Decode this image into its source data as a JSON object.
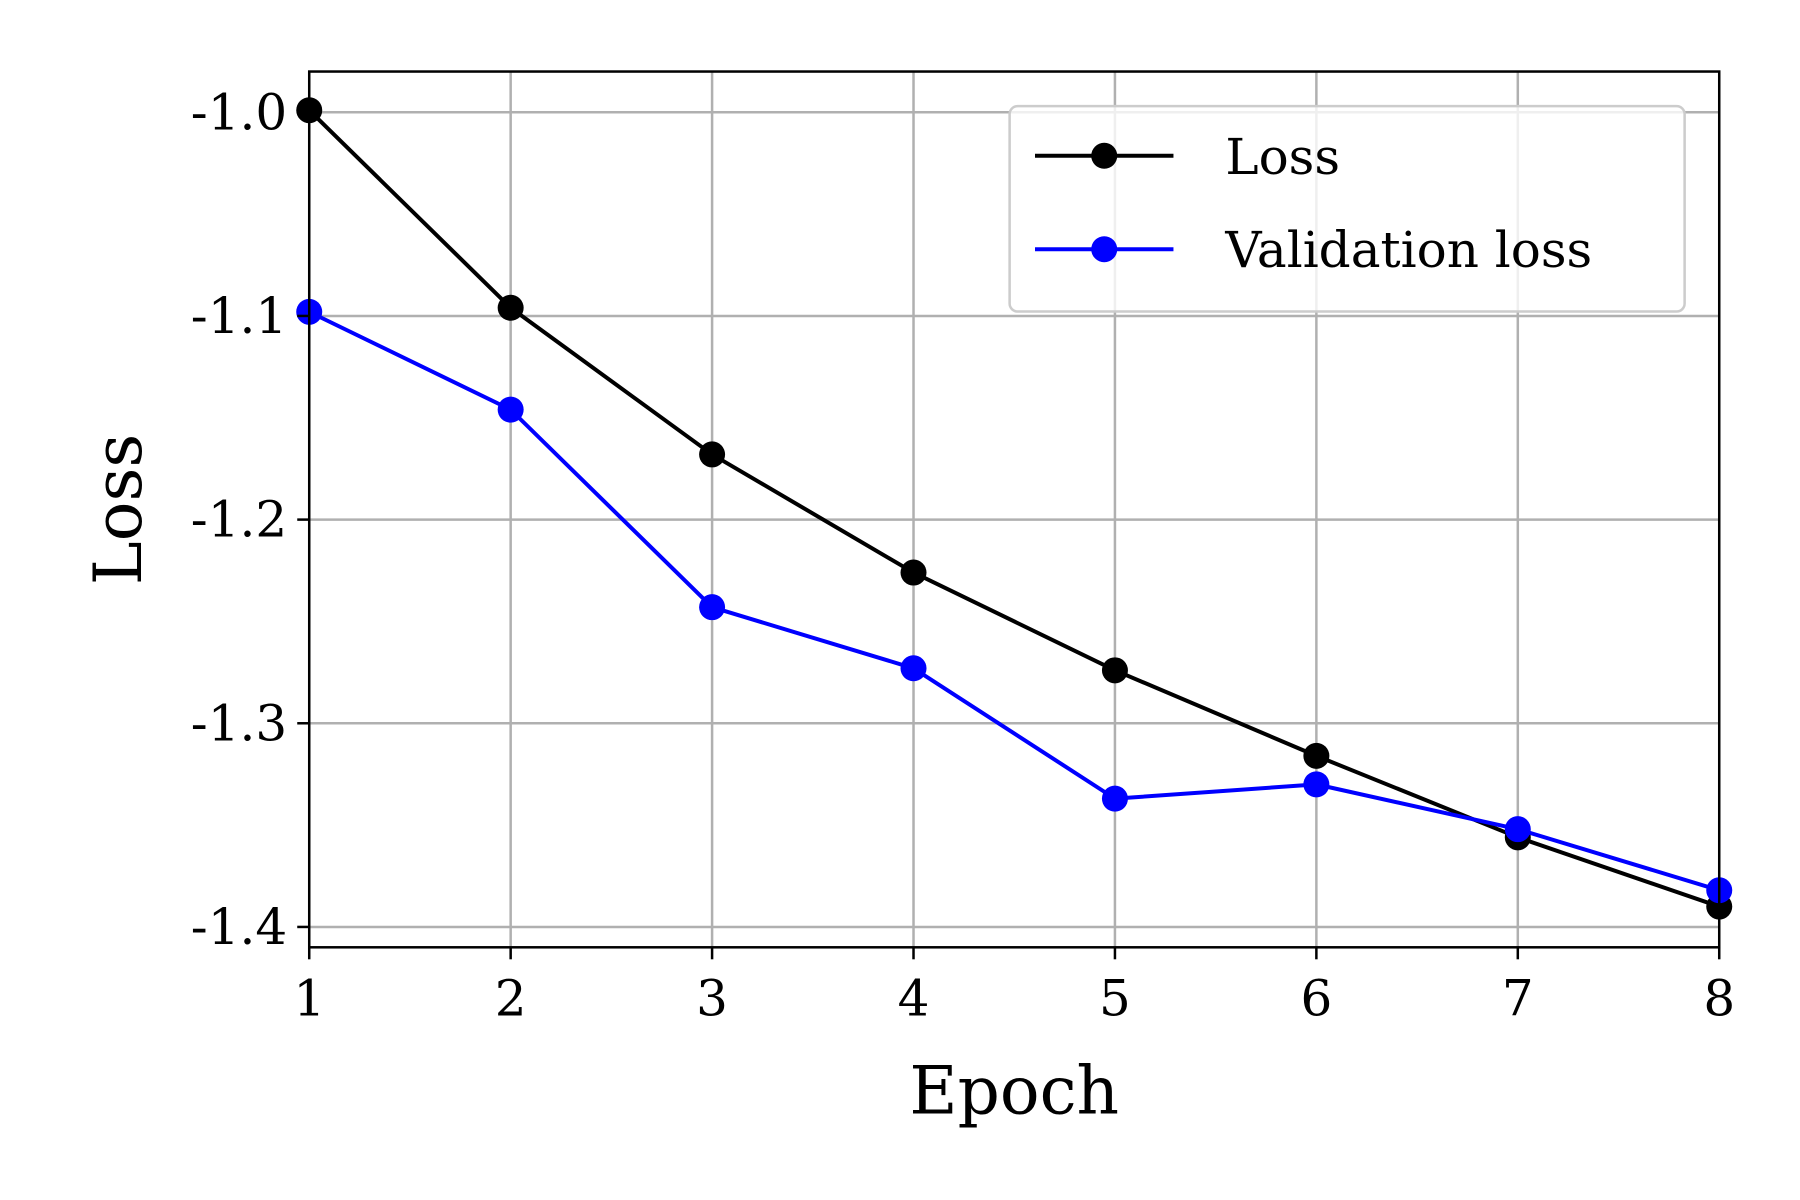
{
  "chart_data": {
    "type": "line",
    "title": "",
    "xlabel": "Epoch",
    "ylabel": "Loss",
    "x": [
      1,
      2,
      3,
      4,
      5,
      6,
      7,
      8
    ],
    "xlim": [
      1,
      8
    ],
    "ylim": [
      -1.41,
      -0.98
    ],
    "xticks": [
      1,
      2,
      3,
      4,
      5,
      6,
      7,
      8
    ],
    "xtick_labels": [
      "1",
      "2",
      "3",
      "4",
      "5",
      "6",
      "7",
      "8"
    ],
    "yticks": [
      -1.0,
      -1.1,
      -1.2,
      -1.3,
      -1.4
    ],
    "ytick_labels": [
      "-1.0",
      "-1.1",
      "-1.2",
      "-1.3",
      "-1.4"
    ],
    "grid": true,
    "legend_position": "upper right",
    "series": [
      {
        "name": "Loss",
        "color": "#000000",
        "marker": "circle",
        "values": [
          -0.999,
          -1.096,
          -1.168,
          -1.226,
          -1.274,
          -1.316,
          -1.356,
          -1.39
        ]
      },
      {
        "name": "Validation loss",
        "color": "#0000ff",
        "marker": "circle",
        "values": [
          -1.098,
          -1.146,
          -1.243,
          -1.273,
          -1.337,
          -1.33,
          -1.352,
          -1.382
        ]
      }
    ]
  },
  "colors": {
    "grid": "#b0b0b0",
    "axes": "#000000",
    "legend_border": "#cccccc"
  }
}
